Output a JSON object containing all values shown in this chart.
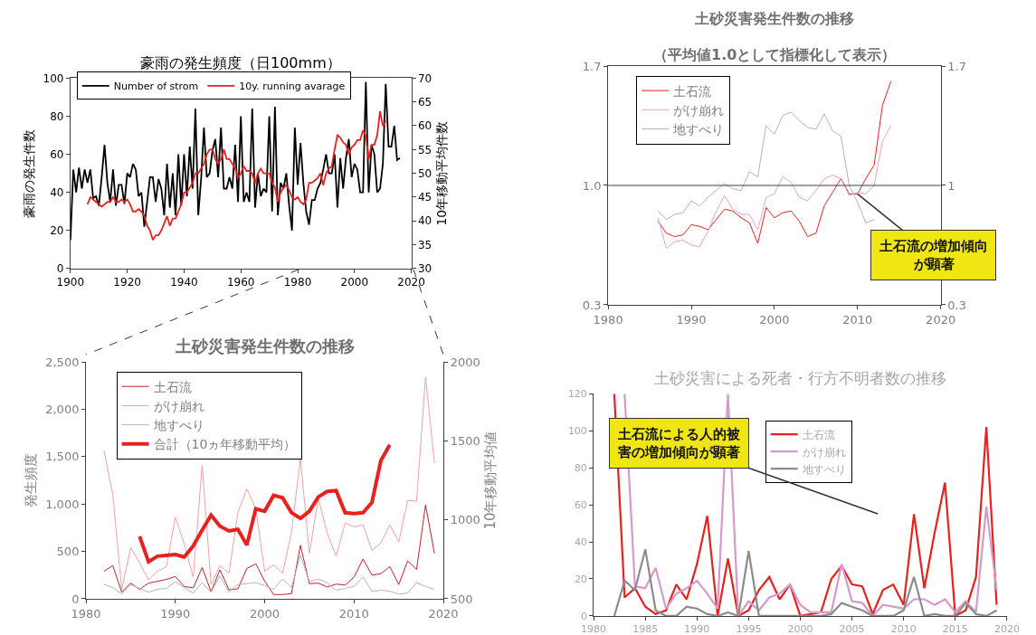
{
  "chart_data": [
    {
      "type": "line",
      "title": "豪雨の発生頻度（日100mm）",
      "ylabel": "豪雨の発生件数",
      "y2label": "10年移動平均件数",
      "legend": "top left",
      "xlim": [
        1900,
        2020
      ],
      "xticks": [
        1900,
        1920,
        1940,
        1960,
        1980,
        2000,
        2020
      ],
      "ylim": [
        0,
        100
      ],
      "yticks": [
        0,
        20,
        40,
        60,
        80,
        100
      ],
      "y2lim": [
        30,
        70
      ],
      "y2ticks": [
        30,
        35,
        40,
        45,
        50,
        55,
        60,
        65,
        70
      ],
      "series": [
        {
          "name": "Number of strom",
          "color": "#000000",
          "x": [
            1900,
            1901,
            1902,
            1903,
            1904,
            1905,
            1906,
            1907,
            1908,
            1909,
            1910,
            1911,
            1912,
            1913,
            1914,
            1915,
            1916,
            1917,
            1918,
            1919,
            1920,
            1921,
            1922,
            1923,
            1924,
            1925,
            1926,
            1927,
            1928,
            1929,
            1930,
            1931,
            1932,
            1933,
            1934,
            1935,
            1936,
            1937,
            1938,
            1939,
            1940,
            1941,
            1942,
            1943,
            1944,
            1945,
            1946,
            1947,
            1948,
            1949,
            1950,
            1951,
            1952,
            1953,
            1954,
            1955,
            1956,
            1957,
            1958,
            1959,
            1960,
            1961,
            1962,
            1963,
            1964,
            1965,
            1966,
            1967,
            1968,
            1969,
            1970,
            1971,
            1972,
            1973,
            1974,
            1975,
            1976,
            1977,
            1978,
            1979,
            1980,
            1981,
            1982,
            1983,
            1984,
            1985,
            1986,
            1987,
            1988,
            1989,
            1990,
            1991,
            1992,
            1993,
            1994,
            1995,
            1996,
            1997,
            1998,
            1999,
            2000,
            2001,
            2002,
            2003,
            2004,
            2005,
            2006,
            2007,
            2008,
            2009,
            2010,
            2011,
            2012,
            2013,
            2014,
            2015,
            2016
          ],
          "values": [
            15,
            52,
            40,
            53,
            42,
            52,
            45,
            52,
            37,
            38,
            33,
            48,
            65,
            45,
            35,
            52,
            33,
            44,
            44,
            34,
            50,
            48,
            55,
            52,
            38,
            40,
            22,
            35,
            48,
            48,
            35,
            47,
            42,
            28,
            55,
            32,
            50,
            28,
            60,
            33,
            60,
            38,
            64,
            42,
            84,
            28,
            47,
            74,
            48,
            50,
            62,
            68,
            48,
            74,
            42,
            42,
            48,
            42,
            65,
            35,
            80,
            35,
            40,
            35,
            84,
            32,
            50,
            38,
            42,
            40,
            80,
            30,
            85,
            28,
            45,
            42,
            50,
            33,
            20,
            74,
            44,
            66,
            45,
            30,
            23,
            36,
            36,
            42,
            45,
            52,
            60,
            50,
            50,
            60,
            32,
            58,
            42,
            58,
            68,
            48,
            55,
            52,
            40,
            40,
            98,
            40,
            65,
            60,
            40,
            42,
            55,
            97,
            64,
            64,
            75,
            57,
            58
          ]
        },
        {
          "name": "10y. running avarage",
          "color": "#e8201e",
          "axis": "y2",
          "x": [
            1906,
            1907,
            1908,
            1909,
            1910,
            1911,
            1912,
            1913,
            1914,
            1915,
            1916,
            1917,
            1918,
            1919,
            1920,
            1921,
            1922,
            1923,
            1924,
            1925,
            1926,
            1927,
            1928,
            1929,
            1930,
            1931,
            1932,
            1933,
            1934,
            1935,
            1936,
            1937,
            1938,
            1939,
            1940,
            1941,
            1942,
            1943,
            1944,
            1945,
            1946,
            1947,
            1948,
            1949,
            1950,
            1951,
            1952,
            1953,
            1954,
            1955,
            1956,
            1957,
            1958,
            1959,
            1960,
            1961,
            1962,
            1963,
            1964,
            1965,
            1966,
            1967,
            1968,
            1969,
            1970,
            1971,
            1972,
            1973,
            1974,
            1975,
            1976,
            1977,
            1978,
            1979,
            1980,
            1981,
            1982,
            1983,
            1984,
            1985,
            1986,
            1987,
            1988,
            1989,
            1990,
            1991,
            1992,
            1993,
            1994,
            1995,
            1996,
            1997,
            1998,
            1999,
            2000,
            2001,
            2002,
            2003,
            2004,
            2005,
            2006,
            2007,
            2008,
            2009,
            2010,
            2011
          ],
          "values": [
            43.5,
            45,
            44.5,
            44,
            43.5,
            43,
            43.5,
            44,
            44,
            45,
            44,
            44,
            44.5,
            44,
            44.5,
            43.5,
            42,
            42,
            42.5,
            42,
            41,
            39,
            38,
            36,
            37,
            37,
            38,
            39.5,
            41,
            39,
            40.5,
            40.5,
            42,
            43.5,
            46,
            46,
            47,
            48,
            50,
            50,
            51,
            52,
            54,
            55,
            55,
            53,
            52,
            53,
            55,
            53,
            53,
            52,
            51,
            49,
            50,
            51.5,
            50.5,
            50.5,
            50,
            48,
            50,
            51,
            50,
            50,
            50,
            48,
            47,
            44,
            46,
            47,
            47.5,
            46.5,
            45,
            44.5,
            45,
            44,
            43.5,
            44.5,
            48,
            48,
            48.5,
            49,
            50,
            47.5,
            50,
            51,
            51.5,
            55,
            58,
            57.5,
            56.5,
            56,
            54,
            55.5,
            56,
            57,
            57,
            59,
            58,
            53,
            56,
            56,
            58,
            63,
            60,
            61
          ]
        }
      ]
    },
    {
      "type": "line",
      "title": "土砂災害発生件数の推移",
      "ylabel": "発生頻度",
      "y2label": "10年移動平均値",
      "legend": "top left",
      "xlim": [
        1980,
        2020
      ],
      "xticks": [
        1980,
        1990,
        2000,
        2010,
        2020
      ],
      "ylim": [
        0,
        2500
      ],
      "yticks": [
        0,
        500,
        {
          "value": 1000,
          "label": "1,000"
        },
        {
          "value": 1500,
          "label": "1,500"
        },
        {
          "value": 2000,
          "label": "2,000"
        },
        {
          "value": 2500,
          "label": "2,500"
        }
      ],
      "y2lim": [
        500,
        2000
      ],
      "y2ticks": [
        500,
        1000,
        1500,
        2000
      ],
      "series": [
        {
          "name": "土石流",
          "color": "#c0202a",
          "x": [
            1982,
            1983,
            1984,
            1985,
            1986,
            1987,
            1988,
            1989,
            1990,
            1991,
            1992,
            1993,
            1994,
            1995,
            1996,
            1997,
            1998,
            1999,
            2000,
            2001,
            2002,
            2003,
            2004,
            2005,
            2006,
            2007,
            2008,
            2009,
            2010,
            2011,
            2012,
            2013,
            2014,
            2015,
            2016,
            2017,
            2018,
            2019
          ],
          "values": [
            290,
            350,
            70,
            165,
            100,
            165,
            185,
            205,
            235,
            130,
            115,
            330,
            75,
            305,
            95,
            105,
            320,
            370,
            185,
            45,
            45,
            55,
            565,
            160,
            165,
            125,
            155,
            145,
            230,
            420,
            250,
            265,
            340,
            150,
            400,
            310,
            990,
            480
          ]
        },
        {
          "name": "がけ崩れ",
          "color": "#f4a0a0",
          "x": [
            1982,
            1983,
            1984,
            1985,
            1986,
            1987,
            1988,
            1989,
            1990,
            1991,
            1992,
            1993,
            1994,
            1995,
            1996,
            1997,
            1998,
            1999,
            2000,
            2001,
            2002,
            2003,
            2004,
            2005,
            2006,
            2007,
            2008,
            2009,
            2010,
            2011,
            2012,
            2013,
            2014,
            2015,
            2016,
            2017,
            2018,
            2019
          ],
          "values": [
            1570,
            1100,
            100,
            540,
            380,
            200,
            290,
            340,
            860,
            580,
            230,
            1410,
            150,
            350,
            270,
            910,
            1160,
            950,
            290,
            360,
            270,
            700,
            1480,
            480,
            1060,
            690,
            450,
            800,
            760,
            780,
            510,
            590,
            780,
            600,
            1040,
            1030,
            2340,
            1430
          ]
        },
        {
          "name": "地すべり",
          "color": "#b4b4b4",
          "x": [
            1982,
            1983,
            1984,
            1985,
            1986,
            1987,
            1988,
            1989,
            1990,
            1991,
            1992,
            1993,
            1994,
            1995,
            1996,
            1997,
            1998,
            1999,
            2000,
            2001,
            2002,
            2003,
            2004,
            2005,
            2006,
            2007,
            2008,
            2009,
            2010,
            2011,
            2012,
            2013,
            2014,
            2015,
            2016,
            2017,
            2018,
            2019
          ],
          "values": [
            150,
            120,
            50,
            150,
            110,
            70,
            100,
            110,
            180,
            120,
            60,
            170,
            70,
            240,
            70,
            150,
            160,
            170,
            140,
            100,
            210,
            120,
            460,
            180,
            210,
            170,
            90,
            110,
            130,
            230,
            80,
            90,
            80,
            50,
            60,
            170,
            130,
            100
          ]
        },
        {
          "name": "合計（10ヵ年移動平均）",
          "color": "#e8201e",
          "axis": "y2",
          "x": [
            1986,
            1987,
            1988,
            1989,
            1990,
            1991,
            1992,
            1993,
            1994,
            1995,
            1996,
            1997,
            1998,
            1999,
            2000,
            2001,
            2002,
            2003,
            2004,
            2005,
            2006,
            2007,
            2008,
            2009,
            2010,
            2011,
            2012,
            2013,
            2014
          ],
          "values": [
            895,
            735,
            770,
            775,
            780,
            765,
            835,
            935,
            1030,
            960,
            930,
            940,
            840,
            1070,
            1055,
            1155,
            1140,
            1045,
            1010,
            1055,
            1145,
            1180,
            1185,
            1045,
            1040,
            1045,
            1110,
            1375,
            1475
          ]
        }
      ]
    },
    {
      "type": "line",
      "title": "土砂災害発生件数の推移",
      "subtitle": "（平均値1.0として指標化して表示）",
      "legend": "top left",
      "xlim": [
        1980,
        2020
      ],
      "xticks": [
        1980,
        1990,
        2000,
        2010,
        2020
      ],
      "ylim": [
        0.3,
        1.7
      ],
      "yticks": [
        0.3,
        {
          "value": 1,
          "label": "1.0"
        },
        1.7
      ],
      "y2lim": [
        0.3,
        1.7
      ],
      "y2ticks": [
        0.3,
        1,
        1.7
      ],
      "ref_lines": [
        {
          "axis": "y",
          "value": 1,
          "color": "#404040"
        }
      ],
      "annotations": [
        {
          "text": "土石流の増加傾向が顕著",
          "x": 2010,
          "y": 0.95
        }
      ],
      "series": [
        {
          "name": "土石流",
          "color": "#e8201e",
          "x": [
            1986,
            1987,
            1988,
            1989,
            1990,
            1991,
            1992,
            1993,
            1994,
            1995,
            1996,
            1997,
            1998,
            1999,
            2000,
            2001,
            2002,
            2003,
            2004,
            2005,
            2006,
            2007,
            2008,
            2009,
            2010,
            2011,
            2012,
            2013,
            2014
          ],
          "values": [
            0.79,
            0.72,
            0.7,
            0.71,
            0.77,
            0.76,
            0.74,
            0.8,
            0.86,
            0.85,
            0.81,
            0.78,
            0.66,
            0.87,
            0.81,
            0.84,
            0.85,
            0.79,
            0.7,
            0.72,
            0.88,
            0.96,
            1.04,
            0.95,
            0.95,
            1.04,
            1.12,
            1.47,
            1.61
          ]
        },
        {
          "name": "がけ崩れ",
          "color": "#e0a0d4",
          "x": [
            1986,
            1987,
            1988,
            1989,
            1990,
            1991,
            1992,
            1993,
            1994,
            1995,
            1996,
            1997,
            1998,
            1999,
            2000,
            2001,
            2002,
            2003,
            2004,
            2005,
            2006,
            2007,
            2008,
            2009,
            2010,
            2011,
            2012,
            2013,
            2014
          ],
          "values": [
            0.81,
            0.63,
            0.67,
            0.68,
            0.65,
            0.64,
            0.73,
            0.85,
            0.94,
            0.86,
            0.83,
            0.83,
            0.74,
            0.93,
            0.95,
            1.05,
            1.02,
            0.93,
            0.91,
            0.97,
            1.04,
            1.06,
            1.04,
            0.94,
            0.96,
            0.95,
            1.0,
            1.26,
            1.35
          ]
        },
        {
          "name": "地すべり",
          "color": "#b4b4b4",
          "x": [
            1986,
            1987,
            1988,
            1989,
            1990,
            1991,
            1992,
            1993,
            1994,
            1995,
            1996,
            1997,
            1998,
            1999,
            2000,
            2001,
            2002,
            2003,
            2004,
            2005,
            2006,
            2007,
            2008,
            2009,
            2010,
            2011,
            2012
          ],
          "values": [
            0.85,
            0.8,
            0.83,
            0.84,
            0.91,
            0.88,
            0.93,
            0.97,
            1.01,
            0.98,
            0.97,
            1.08,
            1.05,
            1.35,
            1.3,
            1.41,
            1.43,
            1.38,
            1.34,
            1.33,
            1.42,
            1.32,
            1.29,
            1.0,
            0.9,
            0.78,
            0.8
          ]
        }
      ]
    },
    {
      "type": "line",
      "title": "土砂災害による死者・行方不明者数の推移",
      "legend": "top",
      "xlim": [
        1980,
        2020
      ],
      "xticks": [
        1980,
        1985,
        1990,
        1995,
        2000,
        2005,
        2010,
        2015,
        2020
      ],
      "ylim": [
        0,
        120
      ],
      "yticks": [
        0,
        20,
        40,
        60,
        80,
        100,
        120
      ],
      "annotations": [
        "土石流による人的被害の増加傾向が顕著"
      ],
      "series": [
        {
          "name": "土石流",
          "color": "#e8201e",
          "x": [
            1982,
            1983,
            1984,
            1985,
            1986,
            1987,
            1988,
            1989,
            1990,
            1991,
            1992,
            1993,
            1994,
            1995,
            1996,
            1997,
            1998,
            1999,
            2000,
            2001,
            2002,
            2003,
            2004,
            2005,
            2006,
            2007,
            2008,
            2009,
            2010,
            2011,
            2012,
            2013,
            2014,
            2015,
            2016,
            2017,
            2018,
            2019
          ],
          "values": [
            120,
            10,
            15,
            5,
            1,
            3,
            17,
            9,
            28,
            54,
            0,
            31,
            0,
            3,
            14,
            21,
            9,
            17,
            0,
            1,
            2,
            20,
            27,
            17,
            16,
            1,
            14,
            17,
            6,
            55,
            15,
            45,
            72,
            0,
            3,
            21,
            102,
            6
          ]
        },
        {
          "name": "がけ崩れ",
          "color": "#d898cc",
          "x": [
            1983,
            1984,
            1985,
            1986,
            1987,
            1988,
            1989,
            1990,
            1991,
            1992,
            1993,
            1994,
            1995,
            1996,
            1997,
            1998,
            1999,
            2000,
            2001,
            2002,
            2003,
            2004,
            2005,
            2006,
            2007,
            2008,
            2009,
            2010,
            2011,
            2012,
            2013,
            2014,
            2015,
            2016,
            2017,
            2018,
            2019
          ],
          "values": [
            120,
            16,
            15,
            26,
            4,
            12,
            15,
            19,
            12,
            4,
            120,
            0,
            8,
            3,
            10,
            12,
            17,
            6,
            2,
            2,
            2,
            28,
            8,
            7,
            0,
            6,
            5,
            4,
            9,
            9,
            6,
            9,
            2,
            8,
            2,
            59,
            14
          ]
        },
        {
          "name": "地すべり",
          "color": "#8c8c8c",
          "x": [
            1982,
            1983,
            1984,
            1985,
            1986,
            1987,
            1988,
            1989,
            1990,
            1991,
            1992,
            1993,
            1994,
            1995,
            1996,
            1997,
            1998,
            1999,
            2000,
            2001,
            2002,
            2003,
            2004,
            2005,
            2006,
            2007,
            2008,
            2009,
            2010,
            2011,
            2012,
            2013,
            2014,
            2015,
            2016,
            2017,
            2018,
            2019
          ],
          "values": [
            0,
            19,
            14,
            36,
            3,
            0,
            0,
            5,
            4,
            1,
            0,
            2,
            0,
            35,
            0,
            0,
            0,
            0,
            0,
            0,
            0,
            1,
            7,
            5,
            3,
            0,
            0,
            0,
            3,
            21,
            0,
            1,
            0,
            0,
            7,
            1,
            0,
            3
          ]
        }
      ]
    }
  ]
}
